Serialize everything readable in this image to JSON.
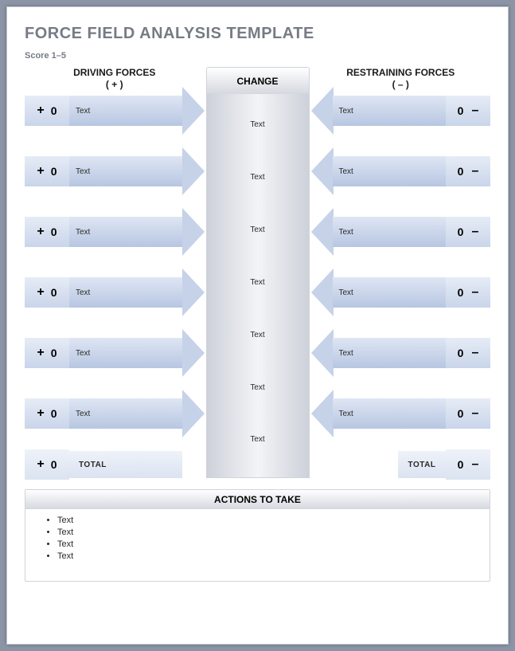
{
  "title": "FORCE FIELD ANALYSIS TEMPLATE",
  "score_hint": "Score 1–5",
  "colors": {
    "page_bg": "#ffffff",
    "frame_bg": "#8b95a6",
    "title_color": "#777b85",
    "arrow_fill_light": "#dfe6f4",
    "arrow_fill_dark": "#b7c6e1",
    "arrow_head": "#c6d2e8",
    "change_grad_edge": "#cdd1d9",
    "change_grad_mid": "#f3f4f7",
    "header_grad_light": "#ffffff",
    "header_grad_dark": "#d5d8df",
    "text": "#2a2a2a"
  },
  "driving": {
    "heading": "DRIVING FORCES",
    "sub": "( + )",
    "sign": "+",
    "rows": [
      {
        "score": "0",
        "label": "Text"
      },
      {
        "score": "0",
        "label": "Text"
      },
      {
        "score": "0",
        "label": "Text"
      },
      {
        "score": "0",
        "label": "Text"
      },
      {
        "score": "0",
        "label": "Text"
      },
      {
        "score": "0",
        "label": "Text"
      }
    ],
    "total_label": "TOTAL",
    "total_value": "0"
  },
  "restraining": {
    "heading": "RESTRAINING FORCES",
    "sub": "( – )",
    "sign": "–",
    "rows": [
      {
        "score": "0",
        "label": "Text"
      },
      {
        "score": "0",
        "label": "Text"
      },
      {
        "score": "0",
        "label": "Text"
      },
      {
        "score": "0",
        "label": "Text"
      },
      {
        "score": "0",
        "label": "Text"
      },
      {
        "score": "0",
        "label": "Text"
      }
    ],
    "total_label": "TOTAL",
    "total_value": "0"
  },
  "change": {
    "heading": "CHANGE",
    "items": [
      "Text",
      "Text",
      "Text",
      "Text",
      "Text",
      "Text",
      "Text"
    ]
  },
  "actions": {
    "heading": "ACTIONS TO TAKE",
    "items": [
      "Text",
      "Text",
      "Text",
      "Text"
    ]
  }
}
